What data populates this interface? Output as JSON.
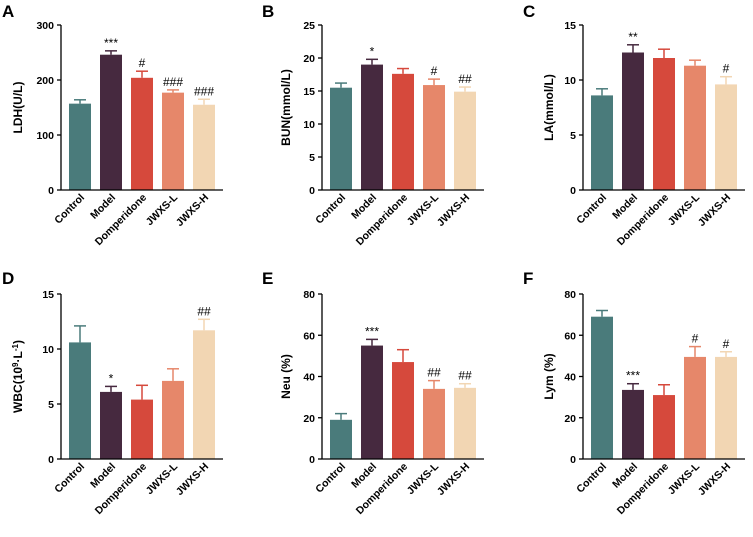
{
  "colors": [
    "#4a7b7b",
    "#46293f",
    "#d6493c",
    "#e6876a",
    "#f2d6b3"
  ],
  "chart_data": [
    {
      "type": "bar",
      "letter": "A",
      "ylabel": "LDH(U/L)",
      "ylabel_super": "",
      "categories": [
        "Control",
        "Model",
        "Domperidone",
        "JWXS-L",
        "JWXS-H"
      ],
      "values": [
        157,
        246,
        204,
        177,
        155
      ],
      "errors": [
        7,
        7,
        12,
        5,
        10
      ],
      "annotations": [
        "",
        "***",
        "#",
        "###",
        "###"
      ],
      "ylim": [
        0,
        300
      ],
      "yticks": [
        0,
        100,
        200,
        300
      ]
    },
    {
      "type": "bar",
      "letter": "B",
      "ylabel": "BUN(mmol/L)",
      "ylabel_super": "",
      "categories": [
        "Control",
        "Model",
        "Domperidone",
        "JWXS-L",
        "JWXS-H"
      ],
      "values": [
        15.5,
        19.0,
        17.6,
        15.9,
        14.9
      ],
      "errors": [
        0.7,
        0.8,
        0.8,
        0.9,
        0.7
      ],
      "annotations": [
        "",
        "*",
        "",
        "#",
        "##"
      ],
      "ylim": [
        0,
        25
      ],
      "yticks": [
        0,
        5,
        10,
        15,
        20,
        25
      ]
    },
    {
      "type": "bar",
      "letter": "C",
      "ylabel": "LA(mmol/L)",
      "ylabel_super": "",
      "categories": [
        "Control",
        "Model",
        "Domperidone",
        "JWXS-L",
        "JWXS-H"
      ],
      "values": [
        8.6,
        12.5,
        12.0,
        11.3,
        9.6
      ],
      "errors": [
        0.6,
        0.7,
        0.8,
        0.5,
        0.7
      ],
      "annotations": [
        "",
        "**",
        "",
        "",
        "#"
      ],
      "ylim": [
        0,
        15
      ],
      "yticks": [
        0,
        5,
        10,
        15
      ]
    },
    {
      "type": "bar",
      "letter": "D",
      "ylabel": "WBC(10",
      "ylabel_super": "9",
      "ylabel_tail": "·L",
      "ylabel_tail_super": "-1",
      "ylabel_end": ")",
      "categories": [
        "Control",
        "Model",
        "Domperidone",
        "JWXS-L",
        "JWXS-H"
      ],
      "values": [
        10.6,
        6.1,
        5.4,
        7.1,
        11.7
      ],
      "errors": [
        1.5,
        0.5,
        1.3,
        1.1,
        1.0
      ],
      "annotations": [
        "",
        "*",
        "",
        "",
        "##"
      ],
      "ylim": [
        0,
        15
      ],
      "yticks": [
        0,
        5,
        10,
        15
      ]
    },
    {
      "type": "bar",
      "letter": "E",
      "ylabel": "Neu (%)",
      "ylabel_super": "",
      "categories": [
        "Control",
        "Model",
        "Domperidone",
        "JWXS-L",
        "JWXS-H"
      ],
      "values": [
        19,
        55,
        47,
        34,
        34.5
      ],
      "errors": [
        3,
        3,
        6,
        4,
        2
      ],
      "annotations": [
        "",
        "***",
        "",
        "##",
        "##"
      ],
      "ylim": [
        0,
        80
      ],
      "yticks": [
        0,
        20,
        40,
        60,
        80
      ]
    },
    {
      "type": "bar",
      "letter": "F",
      "ylabel": "Lym (%)",
      "ylabel_super": "",
      "categories": [
        "Control",
        "Model",
        "Domperidone",
        "JWXS-L",
        "JWXS-H"
      ],
      "values": [
        69,
        33.5,
        31,
        49.5,
        49.5
      ],
      "errors": [
        3,
        3,
        5,
        5,
        2.5
      ],
      "annotations": [
        "",
        "***",
        "",
        "#",
        "#"
      ],
      "ylim": [
        0,
        80
      ],
      "yticks": [
        0,
        20,
        40,
        60,
        80
      ]
    }
  ]
}
